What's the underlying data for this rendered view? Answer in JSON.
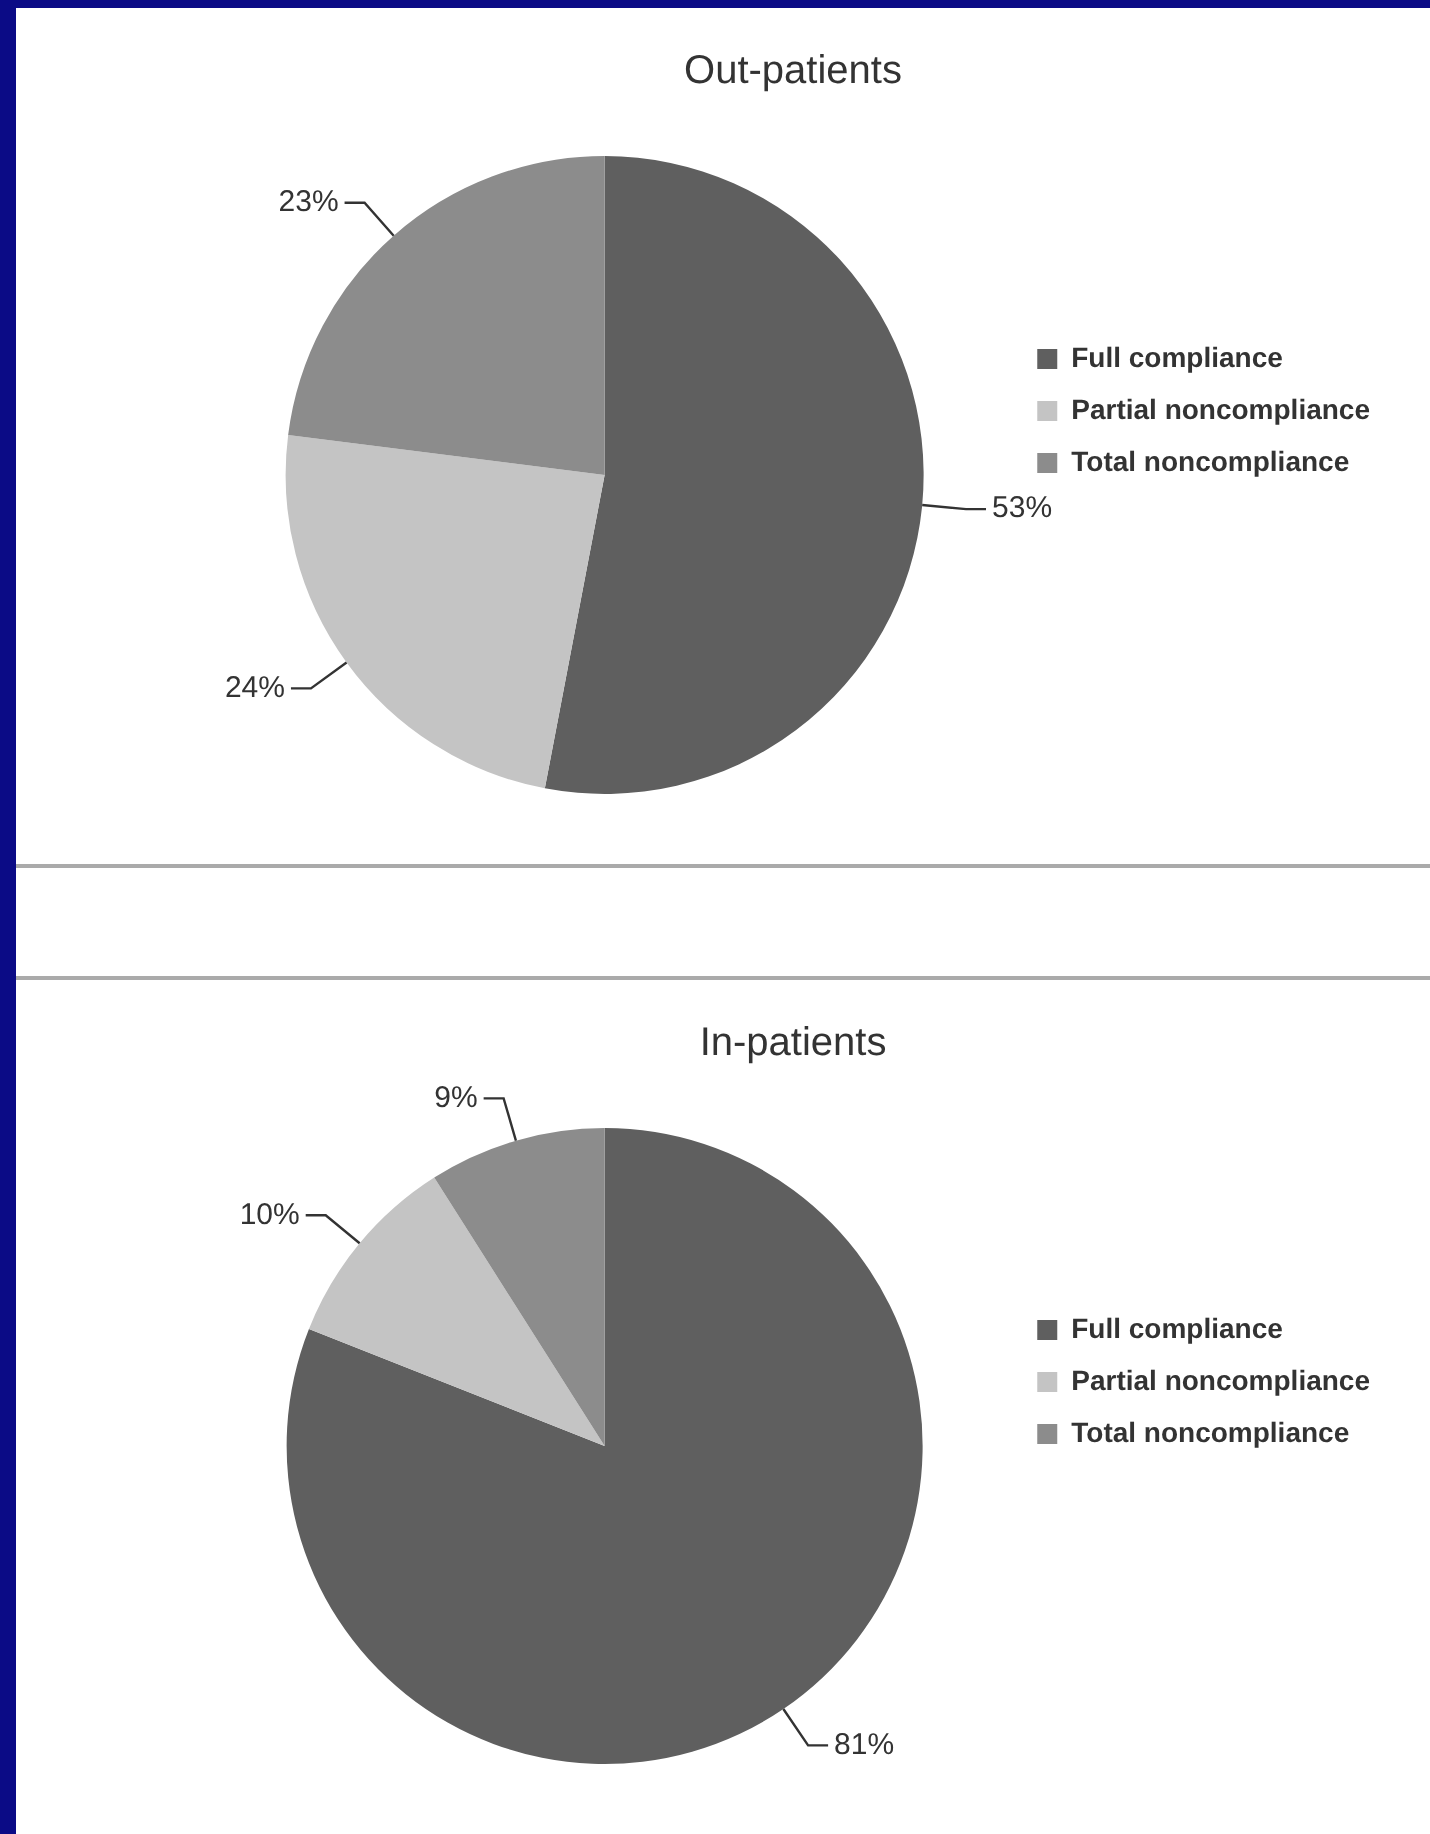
{
  "chart_data": [
    {
      "type": "pie",
      "title": "Out-patients",
      "categories": [
        "Full compliance",
        "Partial noncompliance",
        "Total noncompliance"
      ],
      "values": [
        53,
        24,
        23
      ],
      "colors": [
        "#5f5f5f",
        "#c4c4c4",
        "#8c8c8c"
      ],
      "value_labels": [
        "53%",
        "24%",
        "23%"
      ],
      "legend": "right"
    },
    {
      "type": "pie",
      "title": "In-patients",
      "categories": [
        "Full compliance",
        "Partial noncompliance",
        "Total noncompliance"
      ],
      "values": [
        81,
        10,
        9
      ],
      "colors": [
        "#5f5f5f",
        "#c4c4c4",
        "#8c8c8c"
      ],
      "value_labels": [
        "81%",
        "10%",
        "9%"
      ],
      "legend": "right"
    }
  ]
}
